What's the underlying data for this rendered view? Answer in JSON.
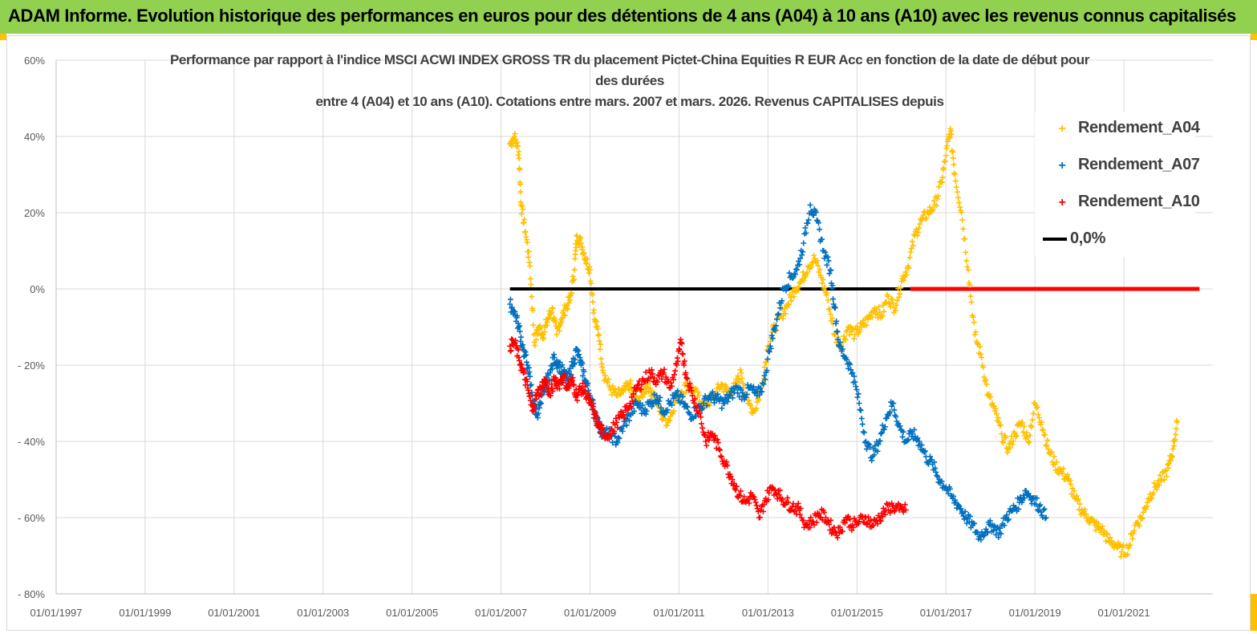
{
  "header": {
    "title": "ADAM Informe. Evolution historique des performances en euros pour des détentions de 4 ans (A04) à 10 ans (A10) avec les revenus connus capitalisés"
  },
  "chart_data": {
    "type": "scatter",
    "title_lines": [
      "Performance par rapport à l'indice MSCI ACWI INDEX GROSS TR  du placement Pictet-China Equities R EUR Acc en fonction de la date de début pour",
      "des durées",
      "entre 4 (A04) et 10 ans (A10). Cotations entre mars. 2007 et mars. 2026. Revenus CAPITALISES depuis"
    ],
    "y_ticks": [
      "60%",
      "40%",
      "20%",
      "0%",
      "- 20%",
      "- 40%",
      "- 60%",
      "- 80%"
    ],
    "y_tick_values": [
      60,
      40,
      20,
      0,
      -20,
      -40,
      -60,
      -80
    ],
    "ylim": [
      -80,
      60
    ],
    "x_ticks": [
      "01/01/1997",
      "01/01/1999",
      "01/01/2001",
      "01/01/2003",
      "01/01/2005",
      "01/01/2007",
      "01/01/2009",
      "01/01/2011",
      "01/01/2013",
      "01/01/2015",
      "01/01/2017",
      "01/01/2019",
      "01/01/2021"
    ],
    "xlim": [
      1997.0,
      2023.0
    ],
    "grid": true,
    "legend_position": "top-right",
    "series": [
      {
        "name": "Rendement_A04",
        "color": "#FFC000",
        "marker": "+",
        "points": [
          [
            2007.2,
            38
          ],
          [
            2007.3,
            40
          ],
          [
            2007.4,
            36
          ],
          [
            2007.45,
            22
          ],
          [
            2007.55,
            15
          ],
          [
            2007.65,
            6
          ],
          [
            2007.75,
            -14
          ],
          [
            2007.85,
            -10
          ],
          [
            2007.95,
            -12
          ],
          [
            2008.05,
            -8
          ],
          [
            2008.15,
            -5
          ],
          [
            2008.25,
            -12
          ],
          [
            2008.35,
            -8
          ],
          [
            2008.45,
            -5
          ],
          [
            2008.55,
            -3
          ],
          [
            2008.65,
            5
          ],
          [
            2008.7,
            14
          ],
          [
            2008.8,
            12
          ],
          [
            2008.9,
            8
          ],
          [
            2009.0,
            5
          ],
          [
            2009.1,
            -8
          ],
          [
            2009.2,
            -12
          ],
          [
            2009.3,
            -22
          ],
          [
            2009.45,
            -26
          ],
          [
            2009.6,
            -28
          ],
          [
            2009.75,
            -27
          ],
          [
            2009.9,
            -25
          ],
          [
            2010.0,
            -30
          ],
          [
            2010.15,
            -28
          ],
          [
            2010.3,
            -25
          ],
          [
            2010.45,
            -28
          ],
          [
            2010.6,
            -33
          ],
          [
            2010.75,
            -35
          ],
          [
            2010.9,
            -30
          ],
          [
            2011.05,
            -27
          ],
          [
            2011.2,
            -25
          ],
          [
            2011.35,
            -27
          ],
          [
            2011.5,
            -30
          ],
          [
            2011.65,
            -30
          ],
          [
            2011.8,
            -28
          ],
          [
            2011.95,
            -25
          ],
          [
            2012.1,
            -27
          ],
          [
            2012.25,
            -26
          ],
          [
            2012.4,
            -22
          ],
          [
            2012.55,
            -30
          ],
          [
            2012.7,
            -32
          ],
          [
            2012.85,
            -26
          ],
          [
            2013.0,
            -15
          ],
          [
            2013.15,
            -10
          ],
          [
            2013.3,
            -7
          ],
          [
            2013.45,
            -4
          ],
          [
            2013.6,
            0
          ],
          [
            2013.75,
            2
          ],
          [
            2013.9,
            6
          ],
          [
            2014.05,
            8
          ],
          [
            2014.2,
            3
          ],
          [
            2014.35,
            -3
          ],
          [
            2014.5,
            -12
          ],
          [
            2014.65,
            -15
          ],
          [
            2014.8,
            -10
          ],
          [
            2014.95,
            -12
          ],
          [
            2015.1,
            -10
          ],
          [
            2015.25,
            -8
          ],
          [
            2015.4,
            -5
          ],
          [
            2015.55,
            -7
          ],
          [
            2015.7,
            -2
          ],
          [
            2015.85,
            -5
          ],
          [
            2016.0,
            2
          ],
          [
            2016.15,
            6
          ],
          [
            2016.3,
            14
          ],
          [
            2016.45,
            18
          ],
          [
            2016.6,
            20
          ],
          [
            2016.75,
            22
          ],
          [
            2016.9,
            28
          ],
          [
            2017.0,
            35
          ],
          [
            2017.1,
            42
          ],
          [
            2017.2,
            30
          ],
          [
            2017.35,
            20
          ],
          [
            2017.5,
            5
          ],
          [
            2017.65,
            -12
          ],
          [
            2017.8,
            -18
          ],
          [
            2017.95,
            -28
          ],
          [
            2018.1,
            -32
          ],
          [
            2018.25,
            -38
          ],
          [
            2018.4,
            -42
          ],
          [
            2018.55,
            -38
          ],
          [
            2018.7,
            -35
          ],
          [
            2018.85,
            -40
          ],
          [
            2019.0,
            -30
          ],
          [
            2019.15,
            -35
          ],
          [
            2019.3,
            -42
          ],
          [
            2019.45,
            -46
          ],
          [
            2019.6,
            -48
          ],
          [
            2019.75,
            -50
          ],
          [
            2019.9,
            -55
          ],
          [
            2020.05,
            -58
          ],
          [
            2020.2,
            -60
          ],
          [
            2020.35,
            -62
          ],
          [
            2020.5,
            -63
          ],
          [
            2020.65,
            -66
          ],
          [
            2020.8,
            -67
          ],
          [
            2020.95,
            -69
          ],
          [
            2021.1,
            -68
          ],
          [
            2021.25,
            -62
          ],
          [
            2021.4,
            -60
          ],
          [
            2021.55,
            -55
          ],
          [
            2021.7,
            -52
          ],
          [
            2021.85,
            -50
          ],
          [
            2022.0,
            -47
          ],
          [
            2022.1,
            -42
          ],
          [
            2022.2,
            -35
          ]
        ]
      },
      {
        "name": "Rendement_A07",
        "color": "#0070C0",
        "marker": "+",
        "points": [
          [
            2007.2,
            -4
          ],
          [
            2007.3,
            -6
          ],
          [
            2007.4,
            -10
          ],
          [
            2007.5,
            -16
          ],
          [
            2007.6,
            -20
          ],
          [
            2007.7,
            -28
          ],
          [
            2007.8,
            -33
          ],
          [
            2007.9,
            -30
          ],
          [
            2008.0,
            -25
          ],
          [
            2008.1,
            -22
          ],
          [
            2008.2,
            -18
          ],
          [
            2008.3,
            -20
          ],
          [
            2008.4,
            -22
          ],
          [
            2008.5,
            -24
          ],
          [
            2008.6,
            -20
          ],
          [
            2008.7,
            -16
          ],
          [
            2008.8,
            -20
          ],
          [
            2008.9,
            -24
          ],
          [
            2009.0,
            -28
          ],
          [
            2009.1,
            -32
          ],
          [
            2009.2,
            -36
          ],
          [
            2009.3,
            -38
          ],
          [
            2009.45,
            -38
          ],
          [
            2009.6,
            -40
          ],
          [
            2009.75,
            -36
          ],
          [
            2009.9,
            -33
          ],
          [
            2010.05,
            -30
          ],
          [
            2010.2,
            -32
          ],
          [
            2010.35,
            -30
          ],
          [
            2010.5,
            -28
          ],
          [
            2010.65,
            -32
          ],
          [
            2010.8,
            -30
          ],
          [
            2010.95,
            -28
          ],
          [
            2011.1,
            -30
          ],
          [
            2011.25,
            -33
          ],
          [
            2011.4,
            -32
          ],
          [
            2011.55,
            -30
          ],
          [
            2011.7,
            -28
          ],
          [
            2011.85,
            -29
          ],
          [
            2012.0,
            -30
          ],
          [
            2012.15,
            -28
          ],
          [
            2012.3,
            -26
          ],
          [
            2012.45,
            -28
          ],
          [
            2012.6,
            -26
          ],
          [
            2012.75,
            -28
          ],
          [
            2012.9,
            -25
          ],
          [
            2013.05,
            -15
          ],
          [
            2013.2,
            -8
          ],
          [
            2013.35,
            0
          ],
          [
            2013.5,
            3
          ],
          [
            2013.65,
            5
          ],
          [
            2013.8,
            12
          ],
          [
            2013.95,
            22
          ],
          [
            2014.1,
            18
          ],
          [
            2014.25,
            10
          ],
          [
            2014.4,
            5
          ],
          [
            2014.5,
            -5
          ],
          [
            2014.6,
            -15
          ],
          [
            2014.75,
            -18
          ],
          [
            2014.9,
            -22
          ],
          [
            2015.05,
            -30
          ],
          [
            2015.2,
            -40
          ],
          [
            2015.35,
            -44
          ],
          [
            2015.5,
            -40
          ],
          [
            2015.65,
            -34
          ],
          [
            2015.8,
            -30
          ],
          [
            2015.95,
            -36
          ],
          [
            2016.1,
            -40
          ],
          [
            2016.25,
            -38
          ],
          [
            2016.4,
            -40
          ],
          [
            2016.55,
            -44
          ],
          [
            2016.7,
            -46
          ],
          [
            2016.85,
            -50
          ],
          [
            2017.0,
            -52
          ],
          [
            2017.15,
            -55
          ],
          [
            2017.3,
            -57
          ],
          [
            2017.45,
            -60
          ],
          [
            2017.6,
            -62
          ],
          [
            2017.75,
            -65
          ],
          [
            2017.9,
            -63
          ],
          [
            2018.05,
            -62
          ],
          [
            2018.2,
            -64
          ],
          [
            2018.35,
            -60
          ],
          [
            2018.5,
            -58
          ],
          [
            2018.65,
            -56
          ],
          [
            2018.8,
            -53
          ],
          [
            2018.95,
            -55
          ],
          [
            2019.1,
            -57
          ],
          [
            2019.25,
            -60
          ]
        ]
      },
      {
        "name": "Rendement_A10",
        "color": "#FF0000",
        "marker": "+",
        "points": [
          [
            2007.2,
            -15
          ],
          [
            2007.3,
            -14
          ],
          [
            2007.4,
            -18
          ],
          [
            2007.5,
            -22
          ],
          [
            2007.6,
            -26
          ],
          [
            2007.7,
            -32
          ],
          [
            2007.8,
            -28
          ],
          [
            2007.9,
            -26
          ],
          [
            2008.0,
            -24
          ],
          [
            2008.1,
            -28
          ],
          [
            2008.2,
            -24
          ],
          [
            2008.3,
            -25
          ],
          [
            2008.4,
            -23
          ],
          [
            2008.5,
            -26
          ],
          [
            2008.6,
            -24
          ],
          [
            2008.7,
            -28
          ],
          [
            2008.8,
            -26
          ],
          [
            2008.9,
            -27
          ],
          [
            2009.0,
            -30
          ],
          [
            2009.1,
            -33
          ],
          [
            2009.2,
            -36
          ],
          [
            2009.3,
            -38
          ],
          [
            2009.45,
            -38
          ],
          [
            2009.6,
            -35
          ],
          [
            2009.75,
            -33
          ],
          [
            2009.9,
            -30
          ],
          [
            2010.05,
            -26
          ],
          [
            2010.2,
            -24
          ],
          [
            2010.35,
            -22
          ],
          [
            2010.5,
            -24
          ],
          [
            2010.65,
            -22
          ],
          [
            2010.8,
            -26
          ],
          [
            2010.95,
            -20
          ],
          [
            2011.05,
            -14
          ],
          [
            2011.15,
            -22
          ],
          [
            2011.3,
            -28
          ],
          [
            2011.45,
            -32
          ],
          [
            2011.6,
            -40
          ],
          [
            2011.75,
            -38
          ],
          [
            2011.9,
            -42
          ],
          [
            2012.05,
            -46
          ],
          [
            2012.2,
            -50
          ],
          [
            2012.35,
            -54
          ],
          [
            2012.5,
            -56
          ],
          [
            2012.65,
            -54
          ],
          [
            2012.8,
            -60
          ],
          [
            2012.95,
            -55
          ],
          [
            2013.1,
            -52
          ],
          [
            2013.25,
            -54
          ],
          [
            2013.4,
            -56
          ],
          [
            2013.55,
            -57
          ],
          [
            2013.7,
            -58
          ],
          [
            2013.85,
            -62
          ],
          [
            2014.0,
            -61
          ],
          [
            2014.15,
            -59
          ],
          [
            2014.3,
            -60
          ],
          [
            2014.45,
            -63
          ],
          [
            2014.6,
            -64
          ],
          [
            2014.75,
            -60
          ],
          [
            2014.9,
            -62
          ],
          [
            2015.05,
            -61
          ],
          [
            2015.2,
            -60
          ],
          [
            2015.35,
            -62
          ],
          [
            2015.5,
            -60
          ],
          [
            2015.65,
            -58
          ],
          [
            2015.8,
            -57
          ],
          [
            2015.95,
            -58
          ],
          [
            2016.1,
            -58
          ]
        ]
      },
      {
        "name": "0,0%",
        "color": "#000000",
        "marker": "line",
        "x": [
          2007.2,
          2016.2
        ],
        "y": [
          0,
          0
        ]
      }
    ],
    "zero_overlay": {
      "color": "#FF0000",
      "x": [
        2016.2,
        2022.7
      ],
      "y": [
        0,
        0
      ]
    }
  }
}
